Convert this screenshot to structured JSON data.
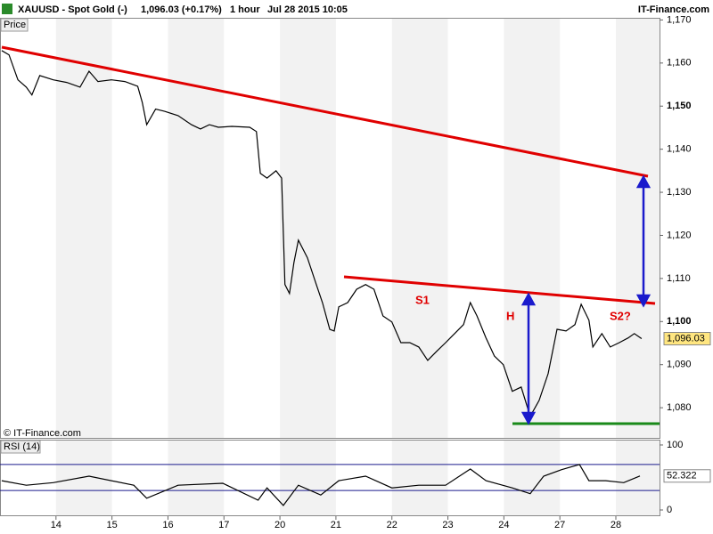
{
  "header": {
    "symbol": "XAUUSD - Spot Gold (-)",
    "quote": "1,096.03 (+0.17%)",
    "interval": "1 hour",
    "timestamp": "Jul 28 2015 10:05",
    "brand": "IT-Finance.com"
  },
  "chart_data": [
    {
      "type": "line",
      "panel_label": "Price",
      "watermark": "© IT-Finance.com",
      "color": "#000000",
      "x": [
        -0.97,
        -0.84,
        -0.68,
        -0.53,
        -0.43,
        -0.29,
        -0.05,
        0.19,
        0.43,
        0.59,
        0.75,
        0.99,
        1.23,
        1.46,
        1.54,
        1.62,
        1.78,
        1.94,
        2.18,
        2.42,
        2.58,
        2.74,
        2.9,
        3.14,
        3.46,
        3.58,
        3.65,
        3.77,
        3.93,
        4.03,
        4.09,
        4.17,
        4.25,
        4.33,
        4.49,
        4.65,
        4.76,
        4.89,
        4.97,
        5.05,
        5.21,
        5.37,
        5.53,
        5.68,
        5.84,
        6.0,
        6.16,
        6.32,
        6.48,
        6.64,
        6.8,
        6.96,
        7.12,
        7.28,
        7.4,
        7.52,
        7.68,
        7.83,
        7.99,
        8.15,
        8.31,
        8.47,
        8.63,
        8.79,
        8.95,
        9.11,
        9.27,
        9.38,
        9.52,
        9.59,
        9.75,
        9.9,
        10.06,
        10.22,
        10.33,
        10.46
      ],
      "values": [
        1162.9,
        1161.9,
        1156.1,
        1154.4,
        1152.6,
        1157.1,
        1156.1,
        1155.5,
        1154.4,
        1158.1,
        1155.7,
        1156.1,
        1155.7,
        1154.6,
        1150.9,
        1145.7,
        1149.3,
        1148.8,
        1147.8,
        1145.7,
        1144.7,
        1145.7,
        1145.1,
        1145.3,
        1145.1,
        1144.1,
        1134.4,
        1133.3,
        1135.0,
        1133.3,
        1108.6,
        1106.5,
        1113.7,
        1118.9,
        1114.8,
        1108.6,
        1104.4,
        1098.2,
        1097.8,
        1103.4,
        1104.4,
        1107.5,
        1108.6,
        1107.5,
        1101.3,
        1099.9,
        1095.1,
        1095.1,
        1094.1,
        1091.0,
        1093.1,
        1095.1,
        1097.2,
        1099.3,
        1104.4,
        1101.3,
        1096.2,
        1092.0,
        1090.0,
        1083.8,
        1084.8,
        1078.0,
        1081.7,
        1087.9,
        1098.2,
        1097.8,
        1099.3,
        1104.0,
        1100.3,
        1094.1,
        1097.2,
        1094.1,
        1095.1,
        1096.2,
        1097.2,
        1096.03
      ],
      "current_price": {
        "value": 1096.03,
        "label": "1,096.03"
      },
      "xlim": [
        -1.0,
        10.78
      ],
      "xticks": [
        {
          "value": 0,
          "label": "14"
        },
        {
          "value": 1,
          "label": "15"
        },
        {
          "value": 2,
          "label": "16"
        },
        {
          "value": 3,
          "label": "17"
        },
        {
          "value": 4,
          "label": "20"
        },
        {
          "value": 5,
          "label": "21"
        },
        {
          "value": 6,
          "label": "22"
        },
        {
          "value": 7,
          "label": "23"
        },
        {
          "value": 8,
          "label": "24"
        },
        {
          "value": 9,
          "label": "27"
        },
        {
          "value": 10,
          "label": "28"
        }
      ],
      "ylim": [
        1073,
        1170.5
      ],
      "yticks": [
        {
          "value": 1080,
          "label": "1,080"
        },
        {
          "value": 1090,
          "label": "1,090"
        },
        {
          "value": 1100,
          "label": "1,100"
        },
        {
          "value": 1110,
          "label": "1,110"
        },
        {
          "value": 1120,
          "label": "1,120"
        },
        {
          "value": 1130,
          "label": "1,130"
        },
        {
          "value": 1140,
          "label": "1,140"
        },
        {
          "value": 1150,
          "label": "1,150"
        },
        {
          "value": 1160,
          "label": "1,160"
        },
        {
          "value": 1170,
          "label": "1,170"
        }
      ],
      "annotations": [
        "S1",
        "H",
        "S2?"
      ]
    },
    {
      "type": "line",
      "panel_label": "RSI (14)",
      "color": "#000000",
      "x": [
        -0.97,
        -0.53,
        -0.05,
        0.59,
        1.39,
        1.62,
        2.18,
        2.98,
        3.61,
        3.77,
        4.06,
        4.33,
        4.73,
        5.05,
        5.53,
        6.0,
        6.48,
        6.96,
        7.4,
        7.68,
        8.15,
        8.47,
        8.71,
        9.03,
        9.35,
        9.52,
        9.82,
        10.14,
        10.43
      ],
      "values": [
        45,
        38,
        42,
        52,
        38,
        18,
        38,
        41,
        15,
        34,
        7,
        38,
        23,
        45,
        52,
        34,
        38,
        38,
        63,
        45,
        34,
        25,
        52,
        62,
        70,
        45,
        45,
        42,
        52.322
      ],
      "xlim": [
        -1.0,
        10.78
      ],
      "ylim": [
        -9.6,
        106.8
      ],
      "yticks": [
        0,
        100
      ],
      "levels": [
        30,
        70
      ],
      "level_color": "#1a1a8c"
    }
  ]
}
